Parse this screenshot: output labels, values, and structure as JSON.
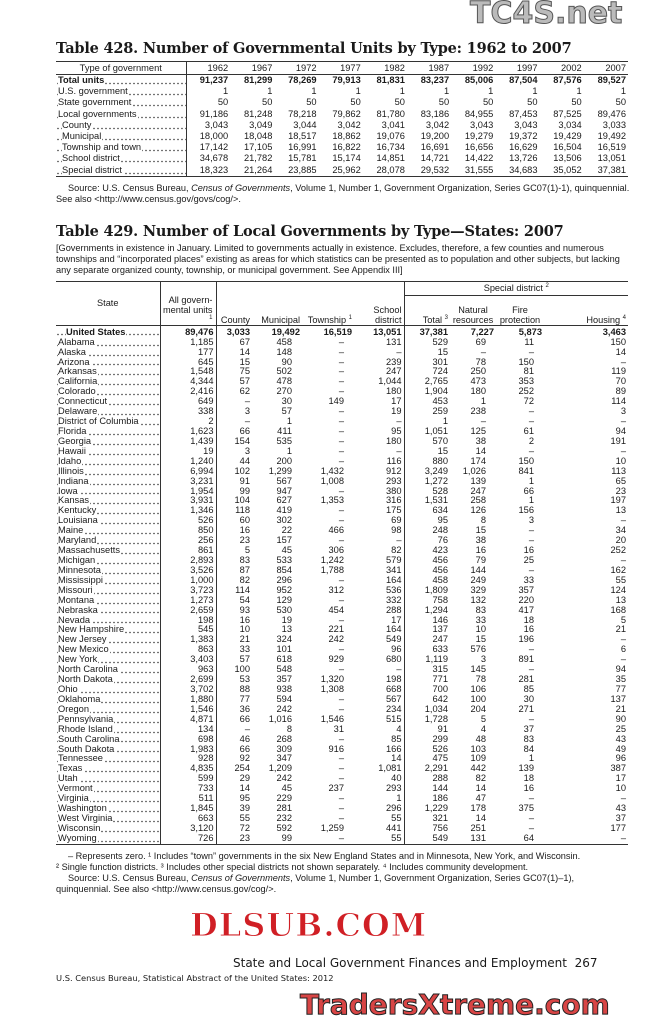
{
  "table428": {
    "title": "Table 428. Number of Governmental Units by Type: 1962 to 2007",
    "stub_header": "Type of government",
    "years": [
      "1962",
      "1967",
      "1972",
      "1977",
      "1982",
      "1987",
      "1992",
      "1997",
      "2002",
      "2007"
    ],
    "rows": [
      {
        "label": "Total units",
        "bold": true,
        "indent": false,
        "values": [
          "91,237",
          "81,299",
          "78,269",
          "79,913",
          "81,831",
          "83,237",
          "85,006",
          "87,504",
          "87,576",
          "89,527"
        ]
      },
      {
        "label": "U.S. government",
        "bold": false,
        "indent": false,
        "values": [
          "1",
          "1",
          "1",
          "1",
          "1",
          "1",
          "1",
          "1",
          "1",
          "1"
        ]
      },
      {
        "label": "State government",
        "bold": false,
        "indent": false,
        "values": [
          "50",
          "50",
          "50",
          "50",
          "50",
          "50",
          "50",
          "50",
          "50",
          "50"
        ]
      },
      {
        "label": "Local governments",
        "bold": false,
        "indent": false,
        "values": [
          "91,186",
          "81,248",
          "78,218",
          "79,862",
          "81,780",
          "83,186",
          "84,955",
          "87,453",
          "87,525",
          "89,476"
        ]
      },
      {
        "label": "County",
        "bold": false,
        "indent": true,
        "values": [
          "3,043",
          "3,049",
          "3,044",
          "3,042",
          "3,041",
          "3,042",
          "3,043",
          "3,043",
          "3,034",
          "3,033"
        ]
      },
      {
        "label": "Municipal",
        "bold": false,
        "indent": true,
        "values": [
          "18,000",
          "18,048",
          "18,517",
          "18,862",
          "19,076",
          "19,200",
          "19,279",
          "19,372",
          "19,429",
          "19,492"
        ]
      },
      {
        "label": "Township and town",
        "bold": false,
        "indent": true,
        "values": [
          "17,142",
          "17,105",
          "16,991",
          "16,822",
          "16,734",
          "16,691",
          "16,656",
          "16,629",
          "16,504",
          "16,519"
        ]
      },
      {
        "label": "School district",
        "bold": false,
        "indent": true,
        "values": [
          "34,678",
          "21,782",
          "15,781",
          "15,174",
          "14,851",
          "14,721",
          "14,422",
          "13,726",
          "13,506",
          "13,051"
        ]
      },
      {
        "label": "Special district",
        "bold": false,
        "indent": true,
        "values": [
          "18,323",
          "21,264",
          "23,885",
          "25,962",
          "28,078",
          "29,532",
          "31,555",
          "34,683",
          "35,052",
          "37,381"
        ]
      }
    ],
    "source_prefix": "Source: U.S. Census Bureau, ",
    "source_italic": "Census of Governments",
    "source_suffix": ", Volume 1, Number 1, Government Organization, Series GC07(1)-1), quinquennial. See also <http://www.census.gov/govs/cog/>."
  },
  "table429": {
    "title": "Table 429. Number of Local Governments by Type—States: 2007",
    "headnote": "[Governments in existence in January. Limited to governments actually in existence. Excludes, therefore, a few counties and numerous townships and “incorporated places” existing as areas for which statistics can be presented as to population and other subjects, but lacking any separate organized county, township, or municipal government. See Appendix III]",
    "headers": {
      "state": "State",
      "all": "All govern- mental units",
      "all_sup": "1",
      "county": "County",
      "municipal": "Municipal",
      "township": "Township",
      "township_sup": "1",
      "school": "School district",
      "special": "Special district",
      "special_sup": "2",
      "total": "Total",
      "total_sup": "3",
      "natural": "Natural resources",
      "fire": "Fire protection",
      "housing": "Housing",
      "housing_sup": "4"
    },
    "us_row": {
      "label": "United States",
      "values": [
        "89,476",
        "3,033",
        "19,492",
        "16,519",
        "13,051",
        "37,381",
        "7,227",
        "5,873",
        "3,463"
      ]
    },
    "rows": [
      [
        "Alabama",
        "1,185",
        "67",
        "458",
        "–",
        "131",
        "529",
        "69",
        "11",
        "150"
      ],
      [
        "Alaska",
        "177",
        "14",
        "148",
        "–",
        "–",
        "15",
        "–",
        "–",
        "14"
      ],
      [
        "Arizona",
        "645",
        "15",
        "90",
        "–",
        "239",
        "301",
        "78",
        "150",
        "–"
      ],
      [
        "Arkansas",
        "1,548",
        "75",
        "502",
        "–",
        "247",
        "724",
        "250",
        "81",
        "119"
      ],
      [
        "California",
        "4,344",
        "57",
        "478",
        "–",
        "1,044",
        "2,765",
        "473",
        "353",
        "70"
      ],
      [
        "Colorado",
        "2,416",
        "62",
        "270",
        "–",
        "180",
        "1,904",
        "180",
        "252",
        "89"
      ],
      [
        "Connecticut",
        "649",
        "–",
        "30",
        "149",
        "17",
        "453",
        "1",
        "72",
        "114"
      ],
      [
        "Delaware",
        "338",
        "3",
        "57",
        "–",
        "19",
        "259",
        "238",
        "–",
        "3"
      ],
      [
        "District of Columbia",
        "2",
        "–",
        "1",
        "–",
        "–",
        "1",
        "–",
        "–",
        "–"
      ],
      [
        "Florida",
        "1,623",
        "66",
        "411",
        "–",
        "95",
        "1,051",
        "125",
        "61",
        "94"
      ],
      [
        "Georgia",
        "1,439",
        "154",
        "535",
        "–",
        "180",
        "570",
        "38",
        "2",
        "191"
      ],
      [
        "Hawaii",
        "19",
        "3",
        "1",
        "–",
        "–",
        "15",
        "14",
        "–",
        "–"
      ],
      [
        "Idaho",
        "1,240",
        "44",
        "200",
        "–",
        "116",
        "880",
        "174",
        "150",
        "10"
      ],
      [
        "Illinois",
        "6,994",
        "102",
        "1,299",
        "1,432",
        "912",
        "3,249",
        "1,026",
        "841",
        "113"
      ],
      [
        "Indiana",
        "3,231",
        "91",
        "567",
        "1,008",
        "293",
        "1,272",
        "139",
        "1",
        "65"
      ],
      [
        "Iowa",
        "1,954",
        "99",
        "947",
        "–",
        "380",
        "528",
        "247",
        "66",
        "23"
      ],
      [
        "Kansas",
        "3,931",
        "104",
        "627",
        "1,353",
        "316",
        "1,531",
        "258",
        "1",
        "197"
      ],
      [
        "Kentucky",
        "1,346",
        "118",
        "419",
        "–",
        "175",
        "634",
        "126",
        "156",
        "13"
      ],
      [
        "Louisiana",
        "526",
        "60",
        "302",
        "–",
        "69",
        "95",
        "8",
        "3",
        "–"
      ],
      [
        "Maine",
        "850",
        "16",
        "22",
        "466",
        "98",
        "248",
        "15",
        "–",
        "34"
      ],
      [
        "Maryland",
        "256",
        "23",
        "157",
        "–",
        "–",
        "76",
        "38",
        "–",
        "20"
      ],
      [
        "Massachusetts",
        "861",
        "5",
        "45",
        "306",
        "82",
        "423",
        "16",
        "16",
        "252"
      ],
      [
        "Michigan",
        "2,893",
        "83",
        "533",
        "1,242",
        "579",
        "456",
        "79",
        "25",
        "–"
      ],
      [
        "Minnesota",
        "3,526",
        "87",
        "854",
        "1,788",
        "341",
        "456",
        "144",
        "–",
        "162"
      ],
      [
        "Mississippi",
        "1,000",
        "82",
        "296",
        "–",
        "164",
        "458",
        "249",
        "33",
        "55"
      ],
      [
        "Missouri",
        "3,723",
        "114",
        "952",
        "312",
        "536",
        "1,809",
        "329",
        "357",
        "124"
      ],
      [
        "Montana",
        "1,273",
        "54",
        "129",
        "–",
        "332",
        "758",
        "132",
        "220",
        "13"
      ],
      [
        "Nebraska",
        "2,659",
        "93",
        "530",
        "454",
        "288",
        "1,294",
        "83",
        "417",
        "168"
      ],
      [
        "Nevada",
        "198",
        "16",
        "19",
        "–",
        "17",
        "146",
        "33",
        "18",
        "5"
      ],
      [
        "New Hampshire",
        "545",
        "10",
        "13",
        "221",
        "164",
        "137",
        "10",
        "16",
        "21"
      ],
      [
        "New Jersey",
        "1,383",
        "21",
        "324",
        "242",
        "549",
        "247",
        "15",
        "196",
        "–"
      ],
      [
        "New Mexico",
        "863",
        "33",
        "101",
        "–",
        "96",
        "633",
        "576",
        "–",
        "6"
      ],
      [
        "New York",
        "3,403",
        "57",
        "618",
        "929",
        "680",
        "1,119",
        "3",
        "891",
        "–"
      ],
      [
        "North Carolina",
        "963",
        "100",
        "548",
        "–",
        "–",
        "315",
        "145",
        "–",
        "94"
      ],
      [
        "North Dakota",
        "2,699",
        "53",
        "357",
        "1,320",
        "198",
        "771",
        "78",
        "281",
        "35"
      ],
      [
        "Ohio",
        "3,702",
        "88",
        "938",
        "1,308",
        "668",
        "700",
        "106",
        "85",
        "77"
      ],
      [
        "Oklahoma",
        "1,880",
        "77",
        "594",
        "–",
        "567",
        "642",
        "100",
        "30",
        "137"
      ],
      [
        "Oregon",
        "1,546",
        "36",
        "242",
        "–",
        "234",
        "1,034",
        "204",
        "271",
        "21"
      ],
      [
        "Pennsylvania",
        "4,871",
        "66",
        "1,016",
        "1,546",
        "515",
        "1,728",
        "5",
        "–",
        "90"
      ],
      [
        "Rhode Island",
        "134",
        "–",
        "8",
        "31",
        "4",
        "91",
        "4",
        "37",
        "25"
      ],
      [
        "South Carolina",
        "698",
        "46",
        "268",
        "–",
        "85",
        "299",
        "48",
        "83",
        "43"
      ],
      [
        "South Dakota",
        "1,983",
        "66",
        "309",
        "916",
        "166",
        "526",
        "103",
        "84",
        "49"
      ],
      [
        "Tennessee",
        "928",
        "92",
        "347",
        "–",
        "14",
        "475",
        "109",
        "1",
        "96"
      ],
      [
        "Texas",
        "4,835",
        "254",
        "1,209",
        "–",
        "1,081",
        "2,291",
        "442",
        "139",
        "387"
      ],
      [
        "Utah",
        "599",
        "29",
        "242",
        "–",
        "40",
        "288",
        "82",
        "18",
        "17"
      ],
      [
        "Vermont",
        "733",
        "14",
        "45",
        "237",
        "293",
        "144",
        "14",
        "16",
        "10"
      ],
      [
        "Virginia",
        "511",
        "95",
        "229",
        "–",
        "1",
        "186",
        "47",
        "–",
        "–"
      ],
      [
        "Washington",
        "1,845",
        "39",
        "281",
        "–",
        "296",
        "1,229",
        "178",
        "375",
        "43"
      ],
      [
        "West Virginia",
        "663",
        "55",
        "232",
        "–",
        "55",
        "321",
        "14",
        "–",
        "37"
      ],
      [
        "Wisconsin",
        "3,120",
        "72",
        "592",
        "1,259",
        "441",
        "756",
        "251",
        "–",
        "177"
      ],
      [
        "Wyoming",
        "726",
        "23",
        "99",
        "–",
        "55",
        "549",
        "131",
        "64",
        "–"
      ]
    ],
    "footnote_1": "– Represents zero. ¹ Includes “town” governments in the six New England States and in Minnesota, New York, and Wisconsin.",
    "footnote_2": "² Single function districts. ³ Includes other special districts not shown separately. ⁴ Includes community development.",
    "source_prefix": "Source: U.S. Census Bureau, ",
    "source_italic": "Census of Governments",
    "source_suffix": ", Volume 1, Number 1, Government Organization, Series GC07(1)–1), quinquennial. See also <http://www.census.gov/cog/>."
  },
  "footer": {
    "section": "State and Local Government Finances and Employment",
    "page": "267",
    "publication": "U.S. Census Bureau, Statistical Abstract of the United States: 2012"
  },
  "watermarks": {
    "top": "TC4S.net",
    "middle": "DLSUB.COM",
    "bottom": "TradersXtreme.com"
  }
}
